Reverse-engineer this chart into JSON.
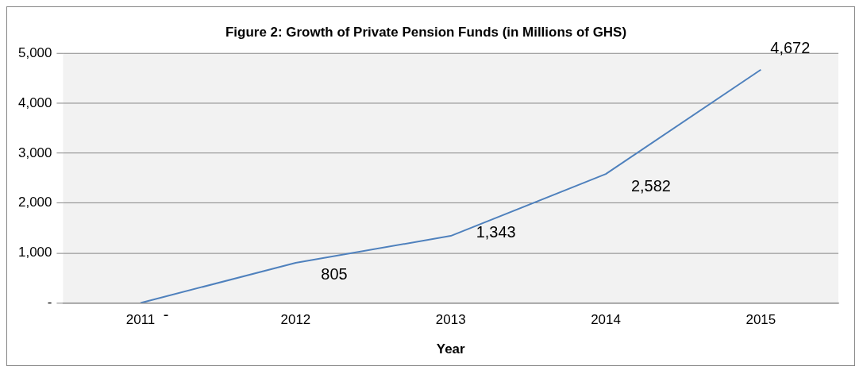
{
  "chart_data": {
    "type": "line",
    "title": "Figure 2: Growth of Private Pension Funds (in Millions of GHS)",
    "xlabel": "Year",
    "categories": [
      "2011",
      "2012",
      "2013",
      "2014",
      "2015"
    ],
    "series": [
      {
        "color": "#4f81bd",
        "values": [
          0,
          805,
          1343,
          2582,
          4672
        ],
        "value_labels": [
          "-",
          "805",
          "1,343",
          "2,582",
          "4,672"
        ]
      }
    ],
    "ylim": [
      0,
      5000
    ],
    "yticks": [
      {
        "value": 0,
        "label": "-"
      },
      {
        "value": 1000,
        "label": "1,000"
      },
      {
        "value": 2000,
        "label": "2,000"
      },
      {
        "value": 3000,
        "label": "3,000"
      },
      {
        "value": 4000,
        "label": "4,000"
      },
      {
        "value": 5000,
        "label": "5,000"
      }
    ],
    "grid": "y",
    "legend": false,
    "marker": "none",
    "line_style": "solid"
  }
}
